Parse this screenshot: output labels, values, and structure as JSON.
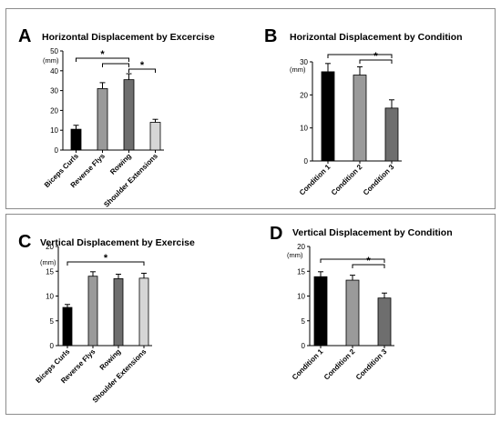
{
  "chart_data": [
    {
      "panel_letter": "A",
      "title": "Horizontal Displacement by Excercise",
      "type": "bar",
      "unit": "(mm)",
      "categories": [
        "Biceps Curls",
        "Reverse Flys",
        "Rowing",
        "Shoulder Extensions"
      ],
      "values": [
        10.5,
        31,
        35.5,
        14
      ],
      "errors": [
        2,
        3,
        3,
        1.5
      ],
      "colors": [
        "#000000",
        "#9a9a9a",
        "#6e6e6e",
        "#d6d6d6"
      ],
      "ylim": [
        0,
        50
      ],
      "yticks": [
        "0",
        "10",
        "20",
        "30",
        "40",
        "50"
      ],
      "significance": [
        {
          "from": 0,
          "to": 2,
          "label": "*"
        },
        {
          "from": 1,
          "to": 2,
          "label": ""
        },
        {
          "from": 2,
          "to": 3,
          "label": "*"
        }
      ]
    },
    {
      "panel_letter": "B",
      "title": "Horizontal Displacement by Condition",
      "type": "bar",
      "unit": "(mm)",
      "categories": [
        "Condition 1",
        "Condition 2",
        "Condition 3"
      ],
      "values": [
        27,
        26,
        16
      ],
      "errors": [
        2.5,
        2.5,
        2.5
      ],
      "colors": [
        "#000000",
        "#9a9a9a",
        "#6e6e6e"
      ],
      "ylim": [
        0,
        30
      ],
      "yticks": [
        "0",
        "10",
        "20",
        "30"
      ],
      "significance": [
        {
          "from": 0,
          "to": 2,
          "label": ""
        },
        {
          "from": 1,
          "to": 2,
          "label": "*"
        }
      ]
    },
    {
      "panel_letter": "C",
      "title": "Vertical Displacement by Exercise",
      "type": "bar",
      "unit": "(mm)",
      "categories": [
        "Biceps Curls",
        "Reverse Flys",
        "Rowing",
        "Shoulder Extensions"
      ],
      "values": [
        7.7,
        14,
        13.5,
        13.6
      ],
      "errors": [
        0.6,
        0.9,
        0.9,
        1
      ],
      "colors": [
        "#000000",
        "#9a9a9a",
        "#6e6e6e",
        "#d6d6d6"
      ],
      "ylim": [
        0,
        20
      ],
      "yticks": [
        "0",
        "5",
        "10",
        "15",
        "20"
      ],
      "significance": [
        {
          "from": 0,
          "to": 3,
          "label": "*"
        }
      ]
    },
    {
      "panel_letter": "D",
      "title": "Vertical Displacement by Condition",
      "type": "bar",
      "unit": "(mm)",
      "categories": [
        "Condition 1",
        "Condition 2",
        "Condition 3"
      ],
      "values": [
        13.9,
        13.2,
        9.6
      ],
      "errors": [
        1,
        1,
        1
      ],
      "colors": [
        "#000000",
        "#9a9a9a",
        "#6e6e6e"
      ],
      "ylim": [
        0,
        20
      ],
      "yticks": [
        "0",
        "5",
        "10",
        "15",
        "20"
      ],
      "significance": [
        {
          "from": 0,
          "to": 2,
          "label": ""
        },
        {
          "from": 1,
          "to": 2,
          "label": "*"
        }
      ]
    }
  ]
}
